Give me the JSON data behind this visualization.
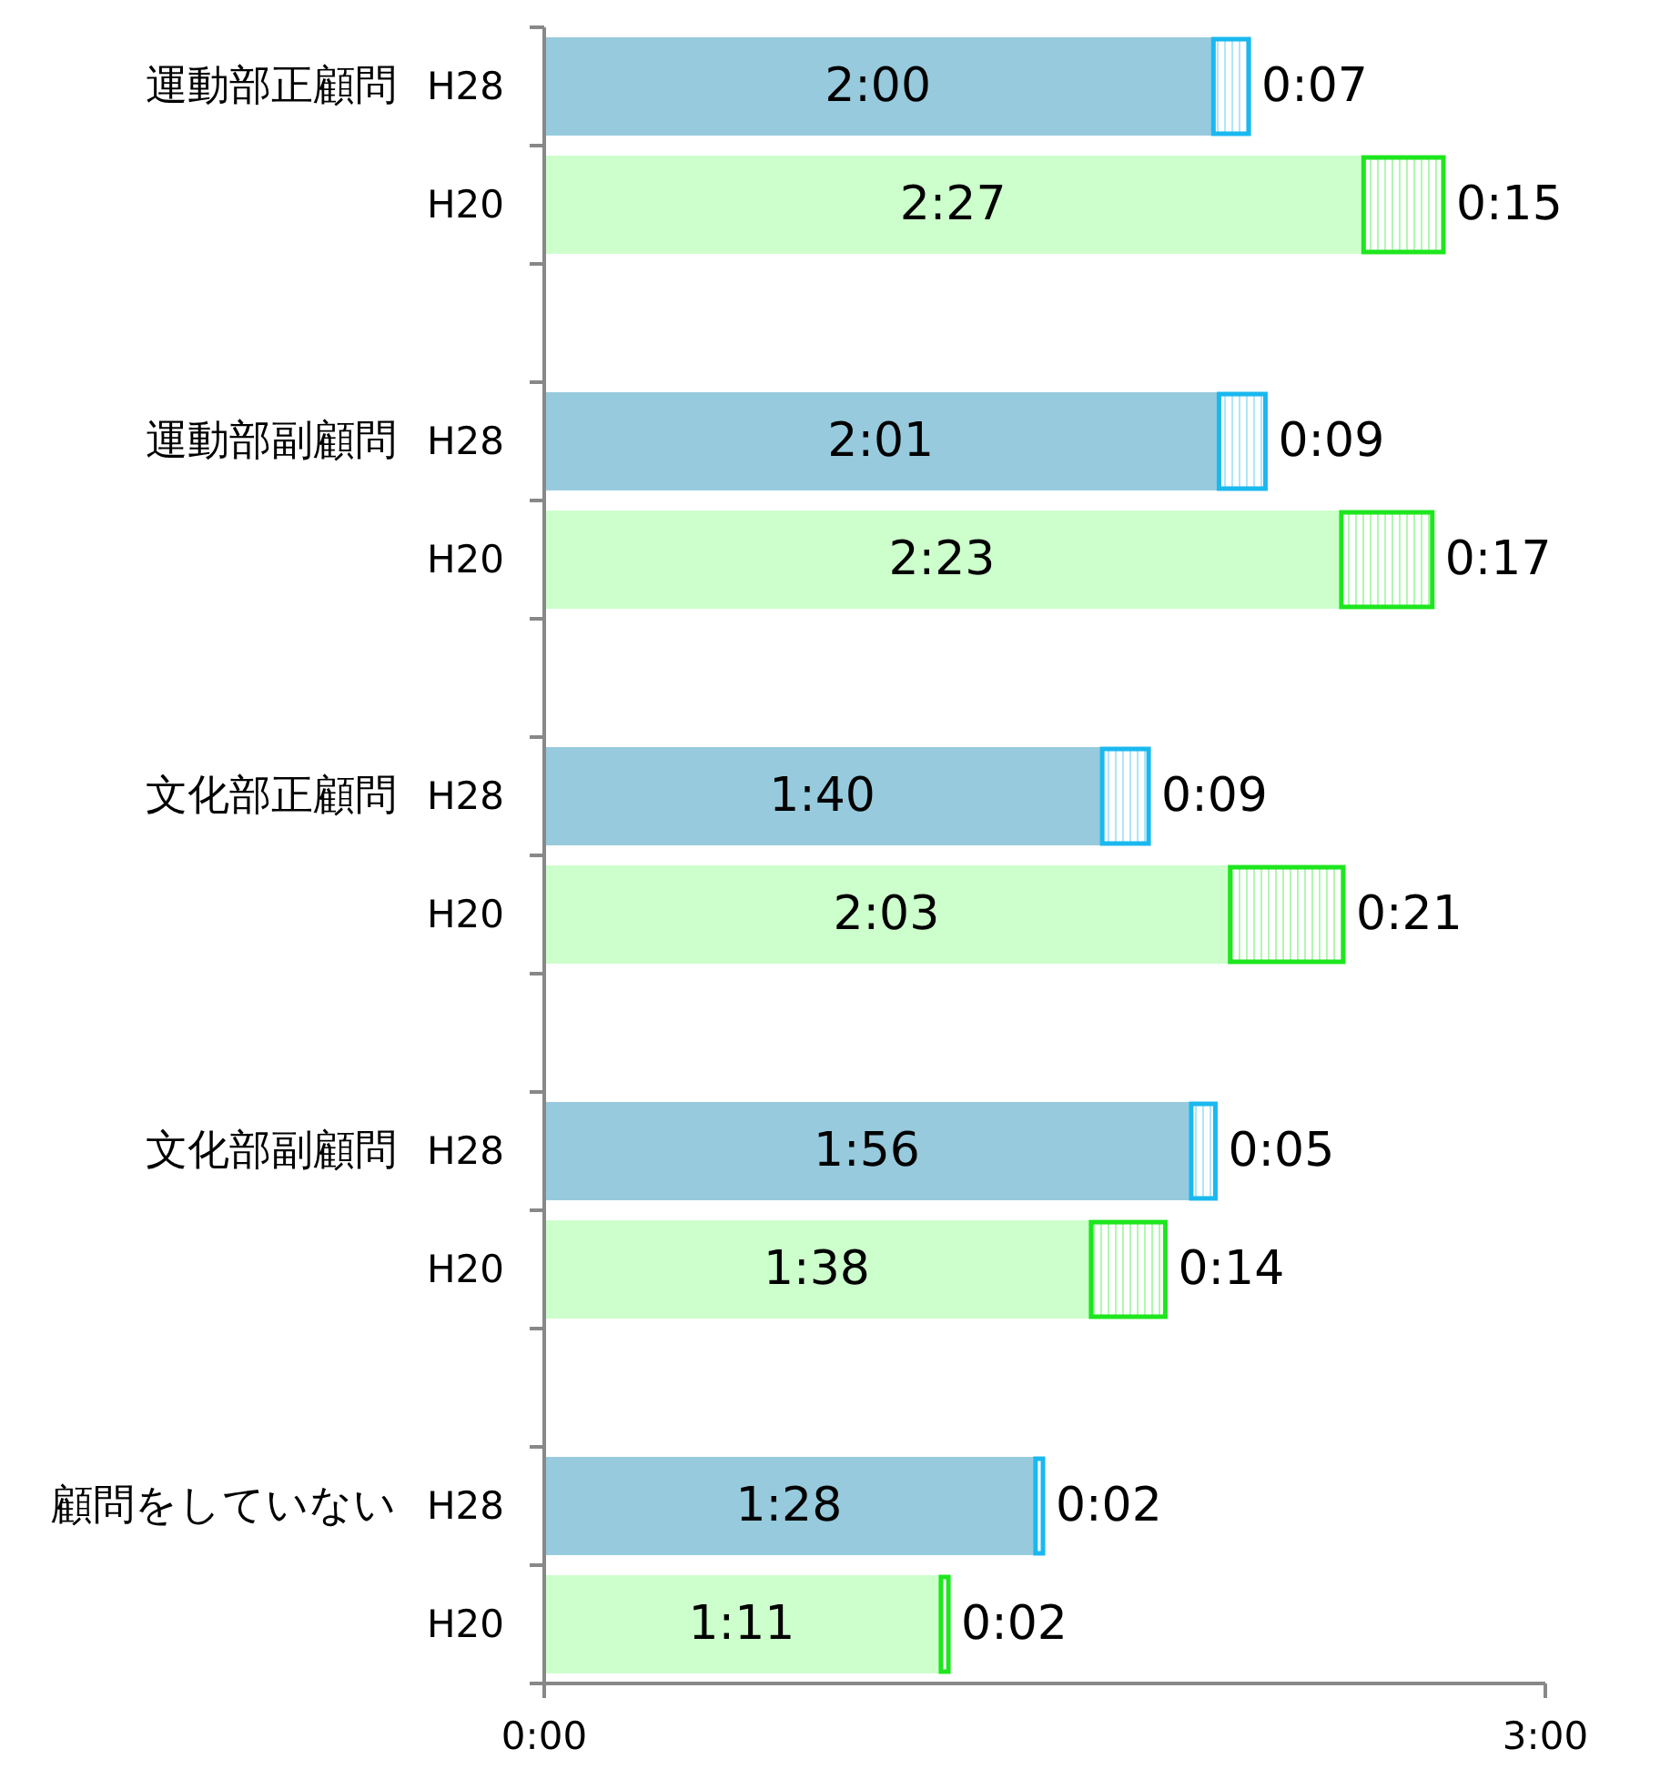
{
  "chart_data": {
    "type": "bar",
    "orientation": "horizontal",
    "stacked": true,
    "categories": [
      "H28",
      "H20",
      null,
      "H28",
      "H20",
      null,
      "H28",
      "H20",
      null,
      "H28",
      "H20",
      null,
      "H28",
      "H20"
    ],
    "annotations": [
      "運動部正顧問",
      "運動部副顧問",
      "文化部正顧問",
      "文化部副顧問",
      "顧問をしていない"
    ],
    "xlim": [
      0,
      180
    ],
    "xticks": [
      {
        "value": 0,
        "label": "0:00"
      },
      {
        "value": 180,
        "label": "3:00"
      }
    ],
    "series": [
      {
        "colors": [
          "#96cadc",
          "#ccffcc",
          null,
          "#96cadc",
          "#ccffcc",
          null,
          "#96cadc",
          "#ccffcc",
          null,
          "#96cadc",
          "#ccffcc",
          null,
          "#96cadc",
          "#ccffcc"
        ],
        "values": [
          120,
          147,
          null,
          121,
          143,
          null,
          100,
          123,
          null,
          116,
          98,
          null,
          88,
          71
        ],
        "value_labels": [
          "2:00",
          "2:27",
          null,
          "2:01",
          "2:23",
          null,
          "1:40",
          "2:03",
          null,
          "1:56",
          "1:38",
          null,
          "1:28",
          "1:11"
        ]
      },
      {
        "colors": [
          "#1ab8ef",
          "#1ee61e",
          null,
          "#1ab8ef",
          "#1ee61e",
          null,
          "#1ab8ef",
          "#1ee61e",
          null,
          "#1ab8ef",
          "#1ee61e",
          null,
          "#1ab8ef",
          "#1ee61e"
        ],
        "values": [
          7,
          15,
          null,
          9,
          17,
          null,
          9,
          21,
          null,
          5,
          14,
          null,
          2,
          2
        ],
        "value_labels": [
          "0:07",
          "0:15",
          null,
          "0:09",
          "0:17",
          null,
          "0:09",
          "0:21",
          null,
          "0:05",
          "0:14",
          null,
          "0:02",
          "0:02"
        ]
      }
    ]
  }
}
